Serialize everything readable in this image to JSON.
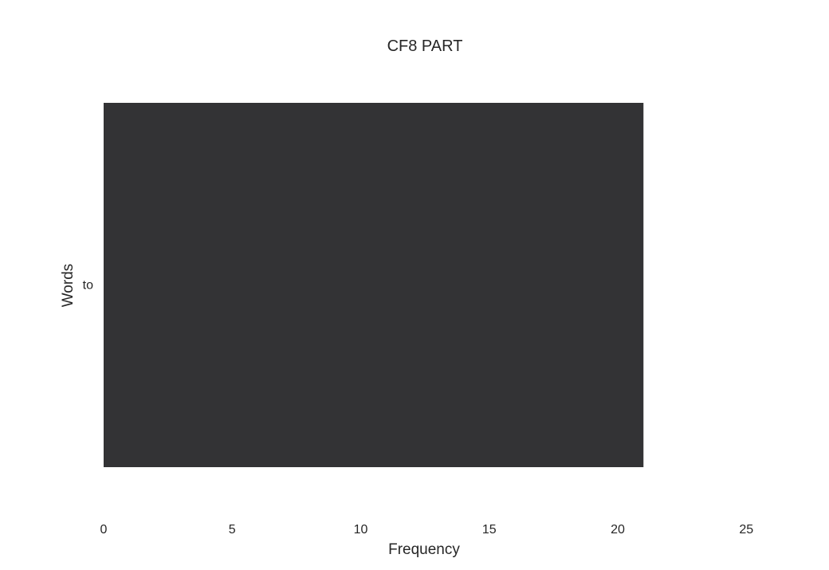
{
  "chart_data": {
    "type": "bar",
    "orientation": "horizontal",
    "title": "CF8 PART",
    "xlabel": "Frequency",
    "ylabel": "Words",
    "categories": [
      "to"
    ],
    "values": [
      21
    ],
    "xlim": [
      0,
      27
    ],
    "xticks": [
      0,
      5,
      10,
      15,
      20,
      25
    ],
    "grid": false,
    "legend": "none",
    "bar_color": "#333335"
  }
}
